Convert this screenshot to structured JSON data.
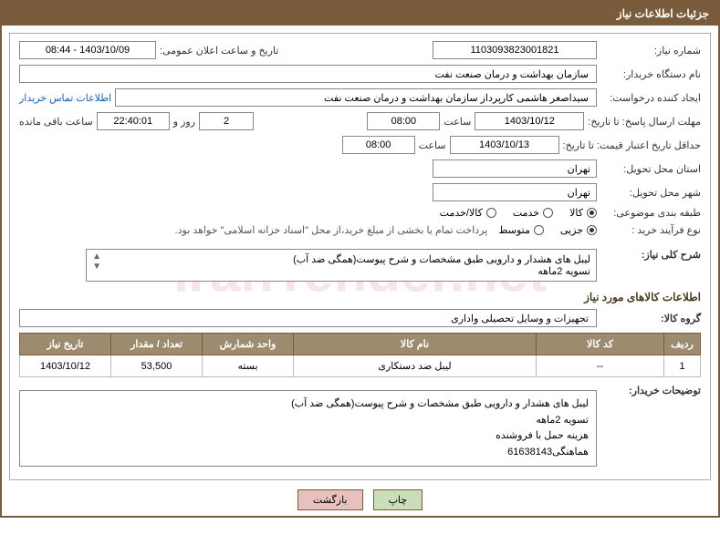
{
  "title_bar": "جزئیات اطلاعات نیاز",
  "labels": {
    "need_no": "شماره نیاز:",
    "announce_dt": "تاریخ و ساعت اعلان عمومی:",
    "buyer_org": "نام دستگاه خریدار:",
    "requester": "ایجاد کننده درخواست:",
    "contact_link": "اطلاعات تماس خریدار",
    "response_deadline": "مهلت ارسال پاسخ: تا تاریخ:",
    "time_word": "ساعت",
    "day_and": "روز و",
    "time_remaining": "ساعت باقی مانده",
    "price_validity": "حداقل تاریخ اعتبار قیمت: تا تاریخ:",
    "delivery_province": "استان محل تحویل:",
    "delivery_city": "شهر محل تحویل:",
    "subject_category": "طبقه بندی موضوعی:",
    "purchase_type": "نوع فرآیند خرید :",
    "need_desc": "شرح کلی نیاز:",
    "goods_group": "گروه کالا:",
    "buyer_notes": "توضیحات خریدار:"
  },
  "fields": {
    "need_no": "1103093823001821",
    "announce_dt": "1403/10/09 - 08:44",
    "buyer_org": "سازمان بهداشت و درمان صنعت نفت",
    "requester": "سیداصغر هاشمی کارپرداز سازمان بهداشت و درمان صنعت نفت",
    "resp_date": "1403/10/12",
    "resp_time": "08:00",
    "days_remaining": "2",
    "countdown": "22:40:01",
    "price_date": "1403/10/13",
    "price_time": "08:00",
    "province": "تهران",
    "city": "تهران",
    "goods_group": "تجهیزات و وسایل تحصیلی واداری"
  },
  "radios": {
    "category": {
      "options": [
        "کالا",
        "خدمت",
        "کالا/خدمت"
      ],
      "selected": 0
    },
    "purchase": {
      "options": [
        "جزیی",
        "متوسط"
      ],
      "selected": 0
    }
  },
  "purchase_note": "پرداخت تمام یا بخشی از مبلغ خرید،از محل \"اسناد خزانه اسلامی\" خواهد بود.",
  "need_desc_lines": [
    "لیبل های هشدار و دارویی طبق مشخصات و شرح پیوست(همگی ضد آب)",
    "تسویه 2ماهه"
  ],
  "section_goods_title": "اطلاعات کالاهای مورد نیاز",
  "table": {
    "headers": [
      "ردیف",
      "کد کالا",
      "نام کالا",
      "واحد شمارش",
      "تعداد / مقدار",
      "تاریخ نیاز"
    ],
    "col_widths": [
      "40px",
      "140px",
      "auto",
      "100px",
      "100px",
      "100px"
    ],
    "rows": [
      [
        "1",
        "--",
        "لیبل ضد دستکاری",
        "بسته",
        "53,500",
        "1403/10/12"
      ]
    ]
  },
  "buyer_notes_lines": [
    "لیبل های هشدار و دارویی طبق مشخصات و شرح پیوست(همگی ضد آب)",
    "تسویه 2ماهه",
    "هزینه حمل با فروشنده",
    "هماهنگی61638143"
  ],
  "buttons": {
    "print": "چاپ",
    "back": "بازگشت"
  },
  "watermark": "IranTender.net",
  "colors": {
    "brand": "#7a5c3d",
    "th_bg": "#9d8b6f",
    "link": "#1a5fb4",
    "btn_print": "#c9dfb8",
    "btn_back": "#e8c0c0"
  }
}
